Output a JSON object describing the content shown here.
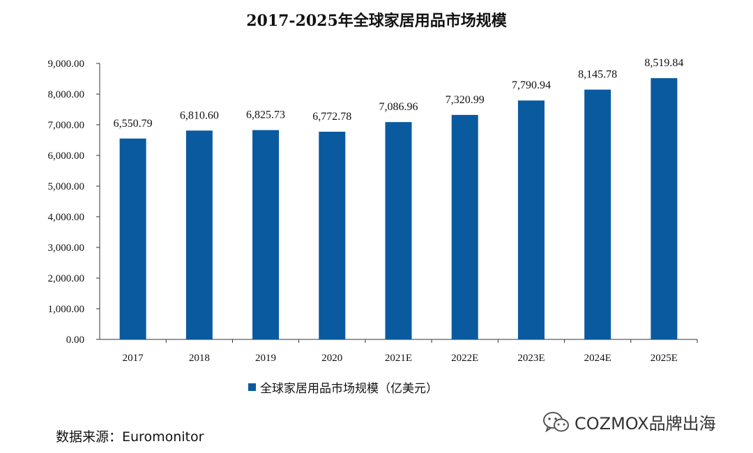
{
  "chart_data": {
    "type": "bar",
    "title": "2017-2025年全球家居用品市场规模",
    "categories": [
      "2017",
      "2018",
      "2019",
      "2020",
      "2021E",
      "2022E",
      "2023E",
      "2024E",
      "2025E"
    ],
    "series": [
      {
        "name": "全球家居用品市场规模（亿美元）",
        "values": [
          6550.79,
          6810.6,
          6825.73,
          6772.78,
          7086.96,
          7320.99,
          7790.94,
          8145.78,
          8519.84
        ],
        "labels": [
          "6,550.79",
          "6,810.60",
          "6,825.73",
          "6,772.78",
          "7,086.96",
          "7,320.99",
          "7,790.94",
          "8,145.78",
          "8,519.84"
        ]
      }
    ],
    "ylim": [
      0,
      9000
    ],
    "yticks": [
      "0.00",
      "1,000.00",
      "2,000.00",
      "3,000.00",
      "4,000.00",
      "5,000.00",
      "6,000.00",
      "7,000.00",
      "8,000.00",
      "9,000.00"
    ],
    "grid": false,
    "legend_position": "bottom",
    "bar_color": "#0a5aa0"
  },
  "source_text": "数据来源：Euromonitor",
  "watermark_text": "COZMOX品牌出海",
  "watermark_icon": "wechat-icon"
}
